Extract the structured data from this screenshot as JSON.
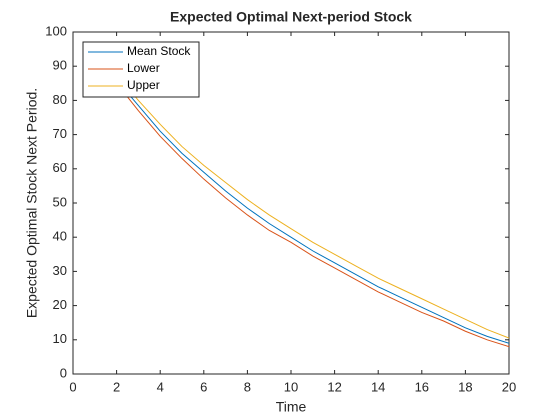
{
  "chart_data": {
    "type": "line",
    "title": "Expected Optimal Next-period Stock",
    "x_label": "Time",
    "y_label": "Expected Optimal Stock Next Period.",
    "x": [
      1,
      2,
      3,
      4,
      5,
      6,
      7,
      8,
      9,
      10,
      11,
      12,
      13,
      14,
      15,
      16,
      17,
      18,
      19,
      20
    ],
    "series": [
      {
        "name": "Mean Stock",
        "color": "#0072bd",
        "values": [
          95,
          86,
          78.5,
          71,
          64.5,
          59,
          53.5,
          48.5,
          44,
          40,
          36,
          32.5,
          29,
          25.5,
          22.5,
          19.5,
          16.5,
          13.5,
          11,
          9
        ]
      },
      {
        "name": "Lower",
        "color": "#d95319",
        "values": [
          94,
          85,
          77,
          69.5,
          63,
          57,
          51.5,
          46.5,
          42,
          38.5,
          34.5,
          31,
          27.5,
          24,
          21,
          18,
          15.5,
          12.5,
          10,
          8
        ]
      },
      {
        "name": "Upper",
        "color": "#edb120",
        "values": [
          96,
          87.5,
          80,
          73,
          66.5,
          61,
          56,
          51,
          46.5,
          42.5,
          38.5,
          35,
          31.5,
          28,
          25,
          22,
          19,
          16,
          13,
          10.5
        ]
      }
    ],
    "xlim": [
      0,
      20
    ],
    "xticks": [
      0,
      2,
      4,
      6,
      8,
      10,
      12,
      14,
      16,
      18,
      20
    ],
    "ylim": [
      0,
      100
    ],
    "yticks": [
      0,
      10,
      20,
      30,
      40,
      50,
      60,
      70,
      80,
      90,
      100
    ],
    "legend": "upper left"
  }
}
